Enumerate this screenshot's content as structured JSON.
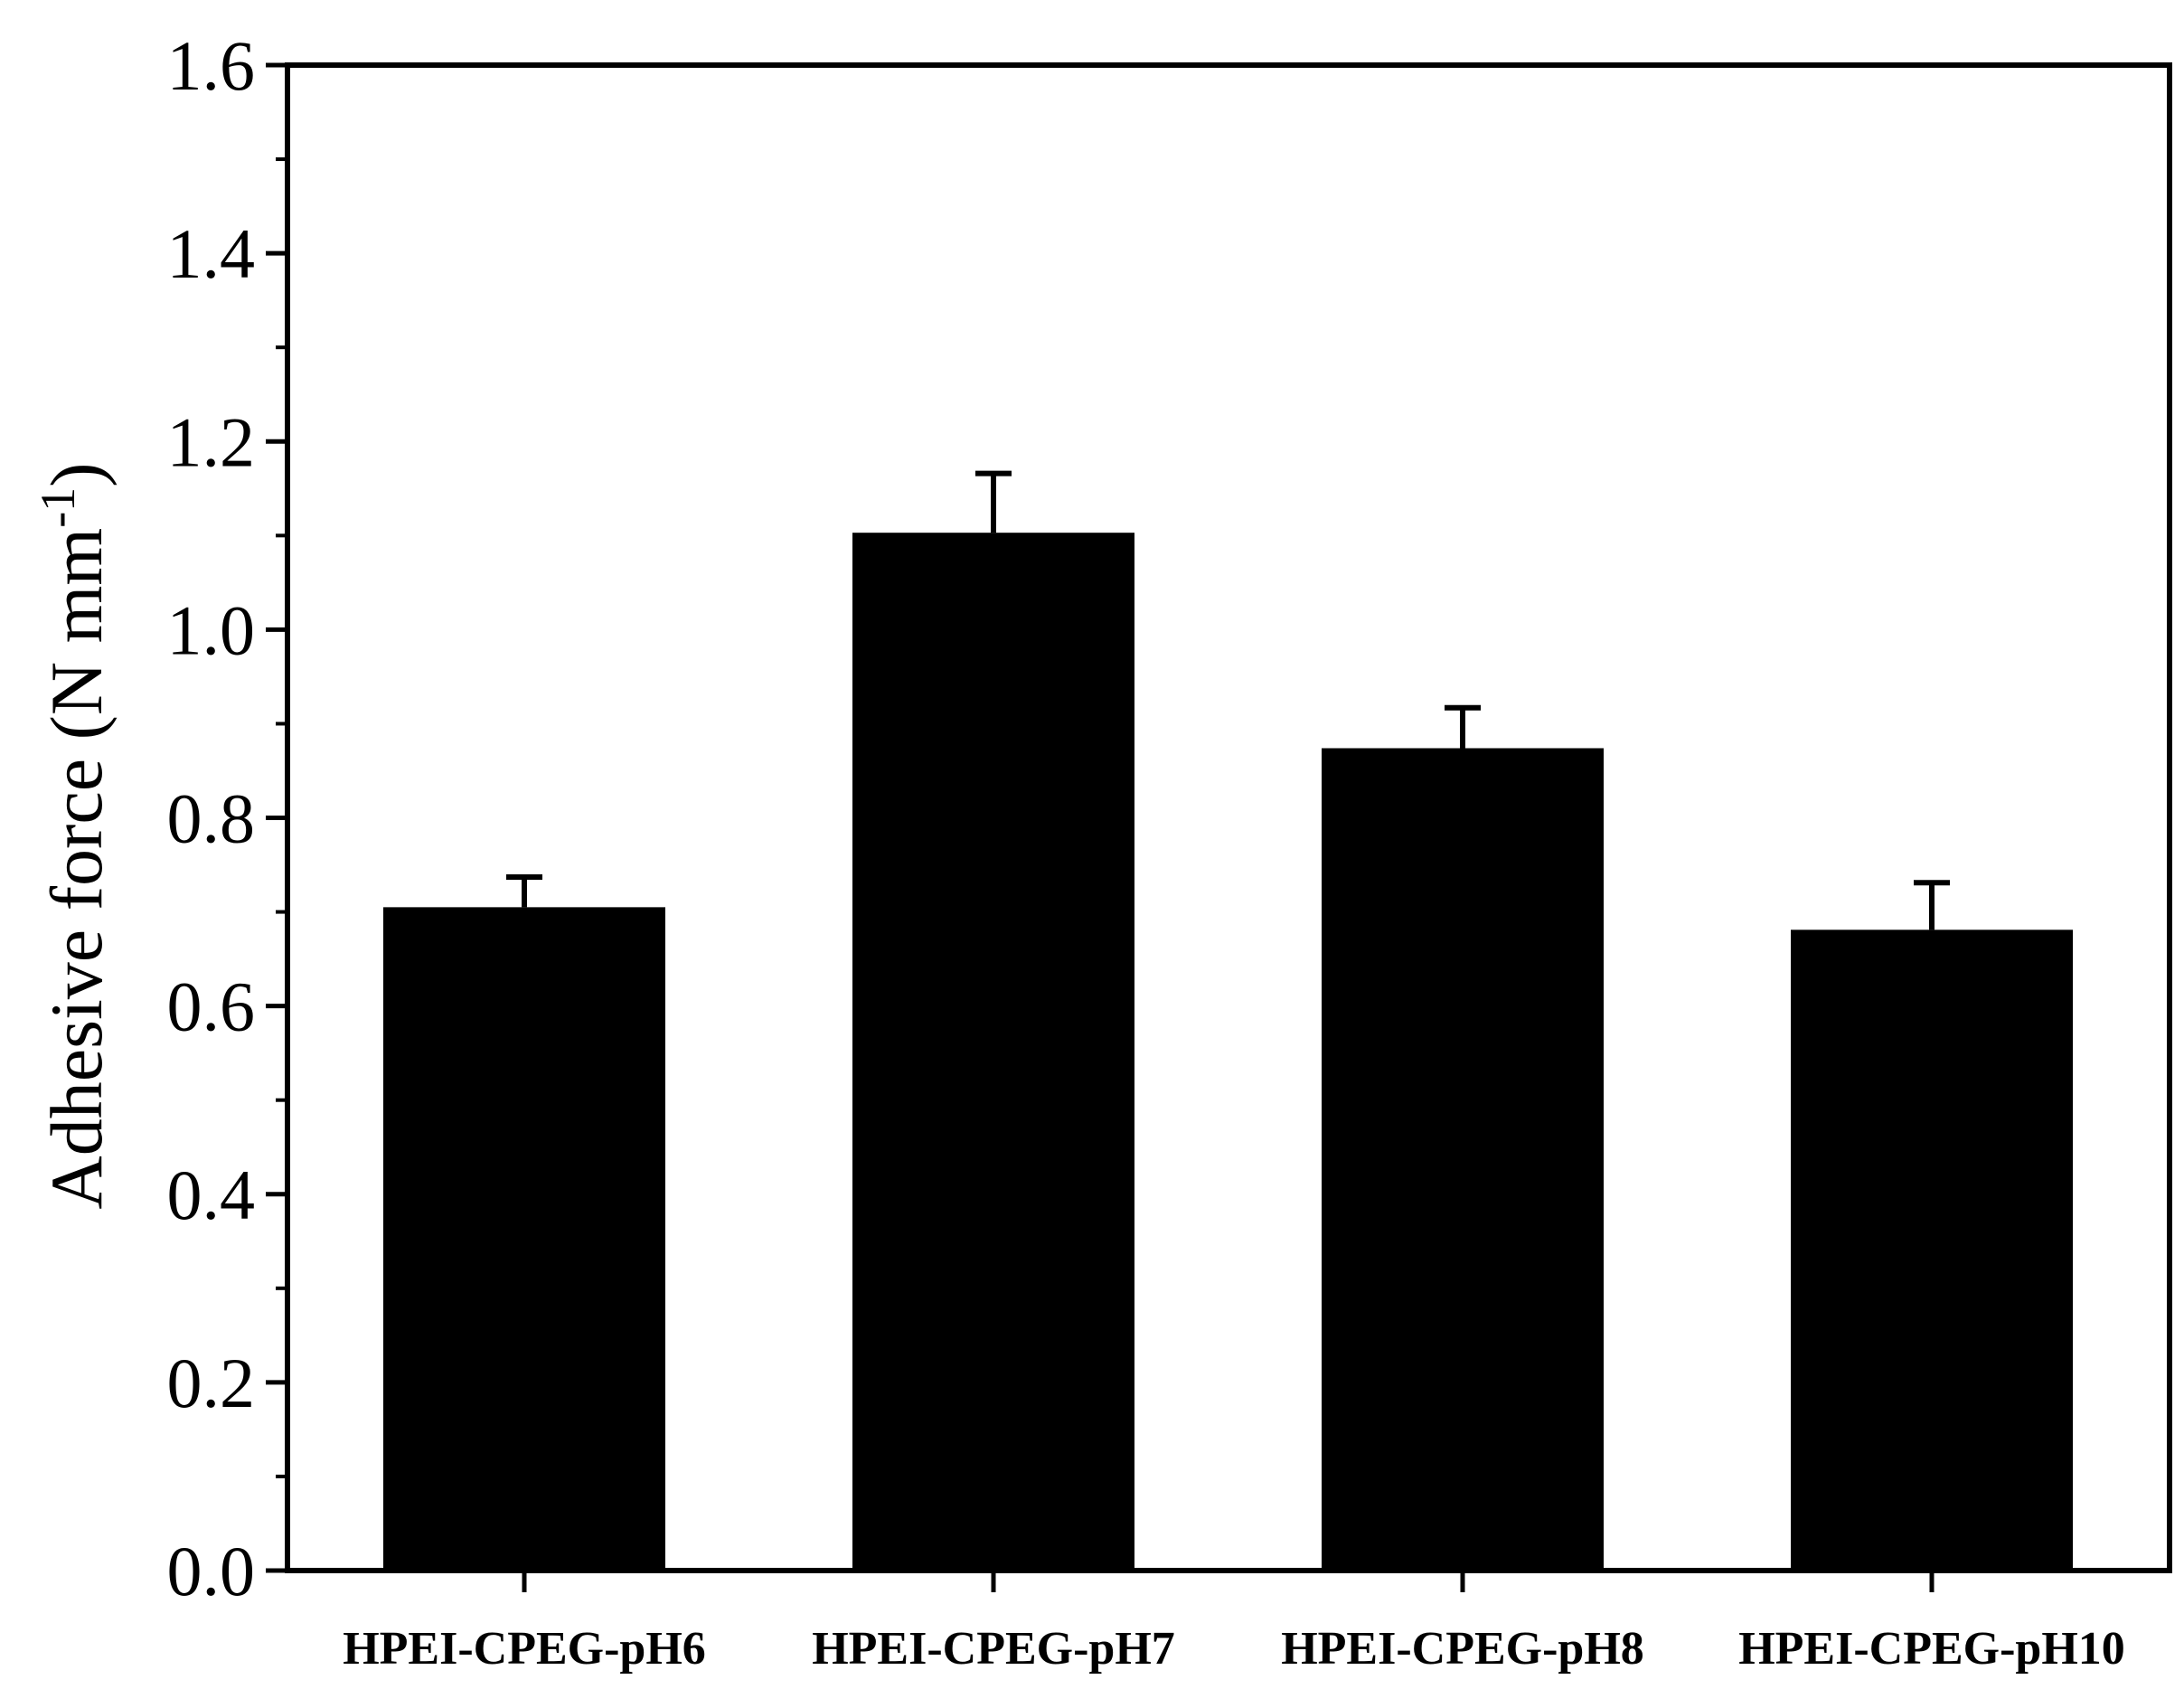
{
  "chart_data": {
    "type": "bar",
    "title": "",
    "xlabel": "",
    "ylabel": "Adhesive force (N mm",
    "ylabel_sup": "-1",
    "ylabel_close": ")",
    "categories": [
      "HPEI-CPEG-pH6",
      "HPEI-CPEG-pH7",
      "HPEI-CPEG-pH8",
      "HPEI-CPEG-pH10"
    ],
    "series": [
      {
        "values": [
          0.705,
          1.103,
          0.874,
          0.681
        ],
        "errors": [
          0.032,
          0.063,
          0.043,
          0.05
        ]
      }
    ],
    "ylim": [
      0,
      1.6
    ],
    "yticks": [
      0.0,
      0.2,
      0.4,
      0.6,
      0.8,
      1.0,
      1.2,
      1.4,
      1.6
    ],
    "ytick_labels": [
      "0.0",
      "0.2",
      "0.4",
      "0.6",
      "0.8",
      "1.0",
      "1.2",
      "1.4",
      "1.6"
    ],
    "grid": false,
    "legend": "none",
    "bar_color": "#000000"
  }
}
